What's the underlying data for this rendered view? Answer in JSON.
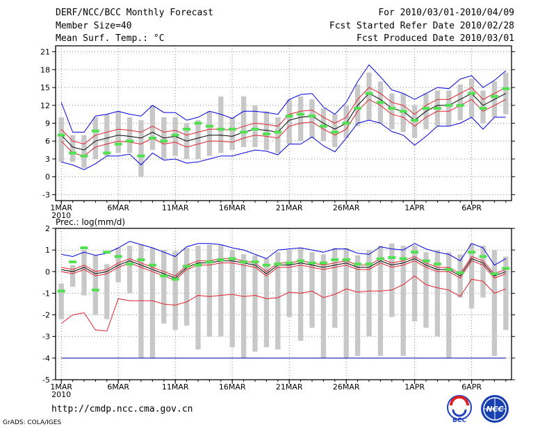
{
  "header": {
    "title": "DERF/NCC/BCC Monthly Forecast",
    "member_size": "Member Size=40",
    "variable": "Mean Surf. Temp.: °C",
    "period": "For 2010/03/01-2010/04/09",
    "started": "Fcst Started Refer Date 2010/02/28",
    "produced": "Fcst Produced Date 2010/03/01"
  },
  "footer": {
    "url": "http://cmdp.ncc.cma.gov.cn",
    "grads": "GrADS: COLA/IGES",
    "logo_bcc": "BCC",
    "logo_ncc": "NCC"
  },
  "colors": {
    "bar": "#c8c8c8",
    "mean": "#000000",
    "spread": "#e0202a",
    "envelope": "#0000e0",
    "obs": "#50e050",
    "grid": "#888888",
    "floor": "#0000aa"
  },
  "chart_data": [
    {
      "type": "line",
      "title": "Mean Surf. Temp.: °C",
      "ylim": [
        -4,
        22
      ],
      "yticks": [
        -3,
        0,
        3,
        6,
        9,
        12,
        15,
        18,
        21
      ],
      "xlim": [
        0.5,
        40.5
      ],
      "xticks": [
        {
          "day": 1,
          "label": "1MAR",
          "label2": "2010"
        },
        {
          "day": 6,
          "label": "6MAR"
        },
        {
          "day": 11,
          "label": "11MAR"
        },
        {
          "day": 16,
          "label": "16MAR"
        },
        {
          "day": 21,
          "label": "21MAR"
        },
        {
          "day": 26,
          "label": "26MAR"
        },
        {
          "day": 32,
          "label": "1APR"
        },
        {
          "day": 37,
          "label": "6APR"
        }
      ],
      "days": [
        1,
        2,
        3,
        4,
        5,
        6,
        7,
        8,
        9,
        10,
        11,
        12,
        13,
        14,
        15,
        16,
        17,
        18,
        19,
        20,
        21,
        22,
        23,
        24,
        25,
        26,
        27,
        28,
        29,
        30,
        31,
        32,
        33,
        34,
        35,
        36,
        37,
        38,
        39,
        40
      ],
      "mean": [
        7,
        5,
        4.5,
        6,
        6.5,
        7,
        6.8,
        6.5,
        7.5,
        6.5,
        6.8,
        6,
        6.5,
        7,
        7,
        6.8,
        7.5,
        8,
        7.8,
        7.5,
        9.5,
        10,
        10.2,
        9,
        8,
        9,
        12,
        14,
        13,
        11.5,
        11,
        9.5,
        11,
        12,
        12,
        13,
        14,
        12,
        13,
        14
      ],
      "red_upper": [
        8,
        6,
        5.5,
        7,
        7.5,
        8,
        7.8,
        7.5,
        8.5,
        7.5,
        7.8,
        7,
        7.5,
        8,
        8,
        7.8,
        8.5,
        9,
        8.8,
        8.5,
        10.5,
        11,
        11.2,
        10,
        9,
        10,
        13,
        15,
        14,
        12.5,
        12,
        10.5,
        12,
        13,
        13,
        14,
        15,
        13,
        14,
        15
      ],
      "red_lower": [
        6,
        4,
        3.5,
        5,
        5.5,
        6,
        5.8,
        5.5,
        6.5,
        5.5,
        5.8,
        5,
        5.5,
        6,
        6,
        5.8,
        6.5,
        7,
        6.8,
        6.5,
        8.5,
        9,
        9.2,
        8,
        7,
        8,
        11,
        13,
        12,
        10.5,
        10,
        8.5,
        10,
        11,
        11,
        12,
        13,
        11,
        12,
        13
      ],
      "blue_upper": [
        12.5,
        7.5,
        7.5,
        10.2,
        10.5,
        11,
        10.5,
        10.2,
        12,
        10.8,
        10.8,
        9.5,
        10,
        11,
        10.5,
        9.8,
        11,
        11,
        10.8,
        10.5,
        13,
        13.8,
        14,
        11.7,
        10.5,
        12.5,
        16,
        18.8,
        16.8,
        14.6,
        14,
        13,
        14,
        15,
        14.8,
        16.4,
        17,
        15,
        16.2,
        17.8
      ],
      "blue_lower": [
        2.5,
        2,
        1.2,
        2.2,
        3.5,
        3.5,
        3.8,
        2,
        4,
        2.8,
        3,
        2.3,
        2.5,
        3,
        3.5,
        3.5,
        4,
        4.5,
        4.3,
        3.7,
        5.5,
        5.5,
        6.7,
        5.2,
        4.2,
        6.5,
        9,
        9.5,
        9,
        7.6,
        7,
        5.3,
        6.8,
        8.5,
        8.5,
        9,
        10,
        8,
        10,
        10
      ],
      "bar_high": [
        10,
        7,
        7,
        10,
        10.5,
        11,
        10,
        9.5,
        12,
        10,
        10,
        9,
        9.5,
        11,
        13.5,
        10,
        13.5,
        12,
        11,
        10,
        13,
        13.5,
        13,
        11.5,
        10.5,
        12,
        15.5,
        17.5,
        16,
        14,
        14,
        12,
        14,
        14.5,
        14.5,
        15.5,
        16.5,
        14.5,
        16,
        17.5
      ],
      "bar_low": [
        2.5,
        2.5,
        1.5,
        3,
        3.5,
        4,
        4,
        0,
        4.5,
        3,
        3.5,
        3,
        3,
        3.5,
        4,
        4.5,
        5,
        5,
        4.5,
        4,
        5.5,
        6,
        6.5,
        6,
        5,
        6.5,
        8.5,
        9.5,
        9,
        8,
        7.5,
        6.5,
        8,
        8.5,
        8.5,
        9.5,
        10,
        9,
        10,
        10.5
      ],
      "obs": [
        7,
        4,
        3.5,
        7.7,
        4,
        5.5,
        6,
        3.5,
        6.5,
        6,
        7,
        8,
        9,
        8.5,
        8,
        8,
        7.5,
        8,
        7.2,
        7.5,
        10.2,
        10.5,
        10.2,
        8.5,
        7.5,
        9,
        11.5,
        14,
        12.5,
        11.5,
        11,
        9.5,
        11.5,
        11.5,
        12,
        12,
        14,
        11.5,
        13.5,
        14.8
      ]
    },
    {
      "type": "line",
      "title": "Prec.: log(mm/d)",
      "ylim": [
        -5,
        2
      ],
      "yticks": [
        -5,
        -4,
        -3,
        -2,
        -1,
        0,
        1,
        2
      ],
      "xlim": [
        0.5,
        40.5
      ],
      "xticks": [
        {
          "day": 1,
          "label": "1MAR",
          "label2": "2010"
        },
        {
          "day": 6,
          "label": "6MAR"
        },
        {
          "day": 11,
          "label": "11MAR"
        },
        {
          "day": 16,
          "label": "16MAR"
        },
        {
          "day": 21,
          "label": "21MAR"
        },
        {
          "day": 26,
          "label": "26MAR"
        },
        {
          "day": 32,
          "label": "1APR"
        },
        {
          "day": 37,
          "label": "6APR"
        }
      ],
      "floor": -4,
      "days": [
        1,
        2,
        3,
        4,
        5,
        6,
        7,
        8,
        9,
        10,
        11,
        12,
        13,
        14,
        15,
        16,
        17,
        18,
        19,
        20,
        21,
        22,
        23,
        24,
        25,
        26,
        27,
        28,
        29,
        30,
        31,
        32,
        33,
        34,
        35,
        36,
        37,
        38,
        39,
        40
      ],
      "mean": [
        0.1,
        0,
        0.2,
        -0.1,
        0,
        0.3,
        0.5,
        0.3,
        0.1,
        -0.1,
        -0.3,
        0.2,
        0.4,
        0.4,
        0.5,
        0.5,
        0.4,
        0.3,
        -0.1,
        0.3,
        0.3,
        0.4,
        0.3,
        0.2,
        0.3,
        0.4,
        0.2,
        0.2,
        0.5,
        0.3,
        0.4,
        0.6,
        0.3,
        0.1,
        0.1,
        -0.2,
        0.6,
        0.4,
        -0.2,
        0
      ],
      "red_upper": [
        0.2,
        0.1,
        0.3,
        0,
        0.1,
        0.4,
        0.6,
        0.4,
        0.2,
        0,
        -0.2,
        0.3,
        0.5,
        0.5,
        0.6,
        0.6,
        0.5,
        0.4,
        0,
        0.4,
        0.4,
        0.5,
        0.4,
        0.3,
        0.4,
        0.5,
        0.3,
        0.3,
        0.6,
        0.4,
        0.5,
        0.7,
        0.4,
        0.2,
        0.2,
        -0.1,
        0.7,
        0.5,
        -0.1,
        0.1
      ],
      "red_lower": [
        0,
        -0.1,
        0.1,
        -0.2,
        -0.1,
        0.2,
        0.4,
        0.2,
        0,
        -0.2,
        -0.4,
        0.1,
        0.3,
        0.3,
        0.4,
        0.4,
        0.3,
        0.2,
        -0.2,
        0.2,
        0.2,
        0.3,
        0.2,
        0.1,
        0.2,
        0.3,
        0.1,
        0.1,
        0.4,
        0.2,
        0.3,
        0.5,
        0.2,
        0,
        0,
        -0.3,
        0.5,
        0.3,
        -0.3,
        -0.1
      ],
      "red_bottom": [
        -2.4,
        -2,
        -1.9,
        -2.7,
        -2.75,
        -1.25,
        -1.35,
        -1.35,
        -1.35,
        -1.5,
        -1.55,
        -1.4,
        -1.1,
        -1.15,
        -1.1,
        -1.05,
        -1.15,
        -1.1,
        -1.25,
        -1.2,
        -0.95,
        -1,
        -0.9,
        -1.2,
        -1.05,
        -0.8,
        -0.95,
        -0.9,
        -0.9,
        -0.85,
        -0.6,
        -0.2,
        -0.6,
        -0.75,
        -0.85,
        -1.15,
        -0.35,
        -0.45,
        -1,
        -0.8
      ],
      "blue_upper": [
        0.8,
        0.7,
        0.9,
        0.75,
        0.85,
        1.1,
        1.4,
        1.25,
        1.1,
        0.9,
        0.7,
        1.15,
        1.3,
        1.3,
        1.25,
        1.1,
        1,
        0.8,
        0.6,
        1,
        1.05,
        1.1,
        1,
        0.9,
        1.05,
        1.05,
        0.85,
        0.8,
        1.15,
        1.05,
        1,
        1.3,
        1.05,
        0.9,
        0.8,
        0.5,
        1.3,
        1.1,
        0.3,
        0.6
      ],
      "bar_high": [
        -0.55,
        0.3,
        1,
        0.75,
        0.35,
        1.1,
        1.2,
        1.25,
        1.1,
        1,
        0.95,
        1.1,
        1.2,
        1.25,
        1.25,
        1,
        0.8,
        0.75,
        0.6,
        0.9,
        1,
        1.1,
        0.9,
        0.8,
        1.1,
        1.1,
        0.75,
        1,
        1.2,
        1.3,
        1.2,
        1.2,
        0.9,
        1,
        0.9,
        0.8,
        1.3,
        1.2,
        1,
        0.7
      ],
      "bar_low": [
        -2.2,
        -0.7,
        -1.1,
        -2,
        -2.2,
        -0.5,
        -1,
        -4,
        -4,
        -2.4,
        -2.7,
        -2.5,
        -3.6,
        -3,
        -3,
        -3.5,
        -4,
        -3.7,
        -3.5,
        -3.6,
        -2.1,
        -3.2,
        -2.6,
        -4,
        -2.6,
        -4,
        -3.9,
        -3,
        -3.9,
        -2.1,
        -3.9,
        -2.3,
        -2.6,
        -3,
        -4,
        -1.2,
        -1.7,
        -1.2,
        -3.9,
        -2.7
      ],
      "obs": [
        -0.9,
        0.45,
        1.1,
        -0.85,
        0.9,
        0.7,
        0.35,
        0.55,
        0.3,
        -0.2,
        -0.35,
        0.25,
        0.3,
        0.45,
        0.55,
        0.6,
        0.45,
        0.45,
        0.3,
        0.35,
        0.4,
        0.5,
        0.4,
        0.4,
        0.55,
        0.55,
        0.35,
        0.35,
        0.6,
        0.65,
        0.6,
        0.9,
        0.5,
        0.35,
        0.1,
        -0.05,
        0.9,
        0.7,
        -0.1,
        0.15
      ]
    }
  ]
}
